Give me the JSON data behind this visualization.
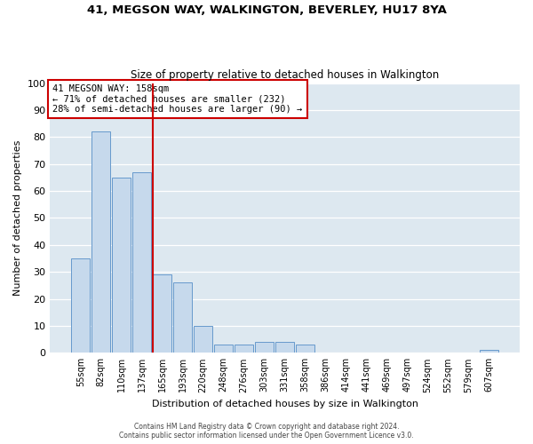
{
  "title": "41, MEGSON WAY, WALKINGTON, BEVERLEY, HU17 8YA",
  "subtitle": "Size of property relative to detached houses in Walkington",
  "xlabel": "Distribution of detached houses by size in Walkington",
  "ylabel": "Number of detached properties",
  "bar_color": "#c6d9ec",
  "bar_edge_color": "#6699cc",
  "categories": [
    "55sqm",
    "82sqm",
    "110sqm",
    "137sqm",
    "165sqm",
    "193sqm",
    "220sqm",
    "248sqm",
    "276sqm",
    "303sqm",
    "331sqm",
    "358sqm",
    "386sqm",
    "414sqm",
    "441sqm",
    "469sqm",
    "497sqm",
    "524sqm",
    "552sqm",
    "579sqm",
    "607sqm"
  ],
  "values": [
    35,
    82,
    65,
    67,
    29,
    26,
    10,
    3,
    3,
    4,
    4,
    3,
    0,
    0,
    0,
    0,
    0,
    0,
    0,
    0,
    1
  ],
  "ylim": [
    0,
    100
  ],
  "yticks": [
    0,
    10,
    20,
    30,
    40,
    50,
    60,
    70,
    80,
    90,
    100
  ],
  "vline_index": 4,
  "vline_color": "#cc0000",
  "annotation_title": "41 MEGSON WAY: 158sqm",
  "annotation_line1": "← 71% of detached houses are smaller (232)",
  "annotation_line2": "28% of semi-detached houses are larger (90) →",
  "annotation_box_color": "#cc0000",
  "plot_bg_color": "#dde8f0",
  "footer_line1": "Contains HM Land Registry data © Crown copyright and database right 2024.",
  "footer_line2": "Contains public sector information licensed under the Open Government Licence v3.0."
}
